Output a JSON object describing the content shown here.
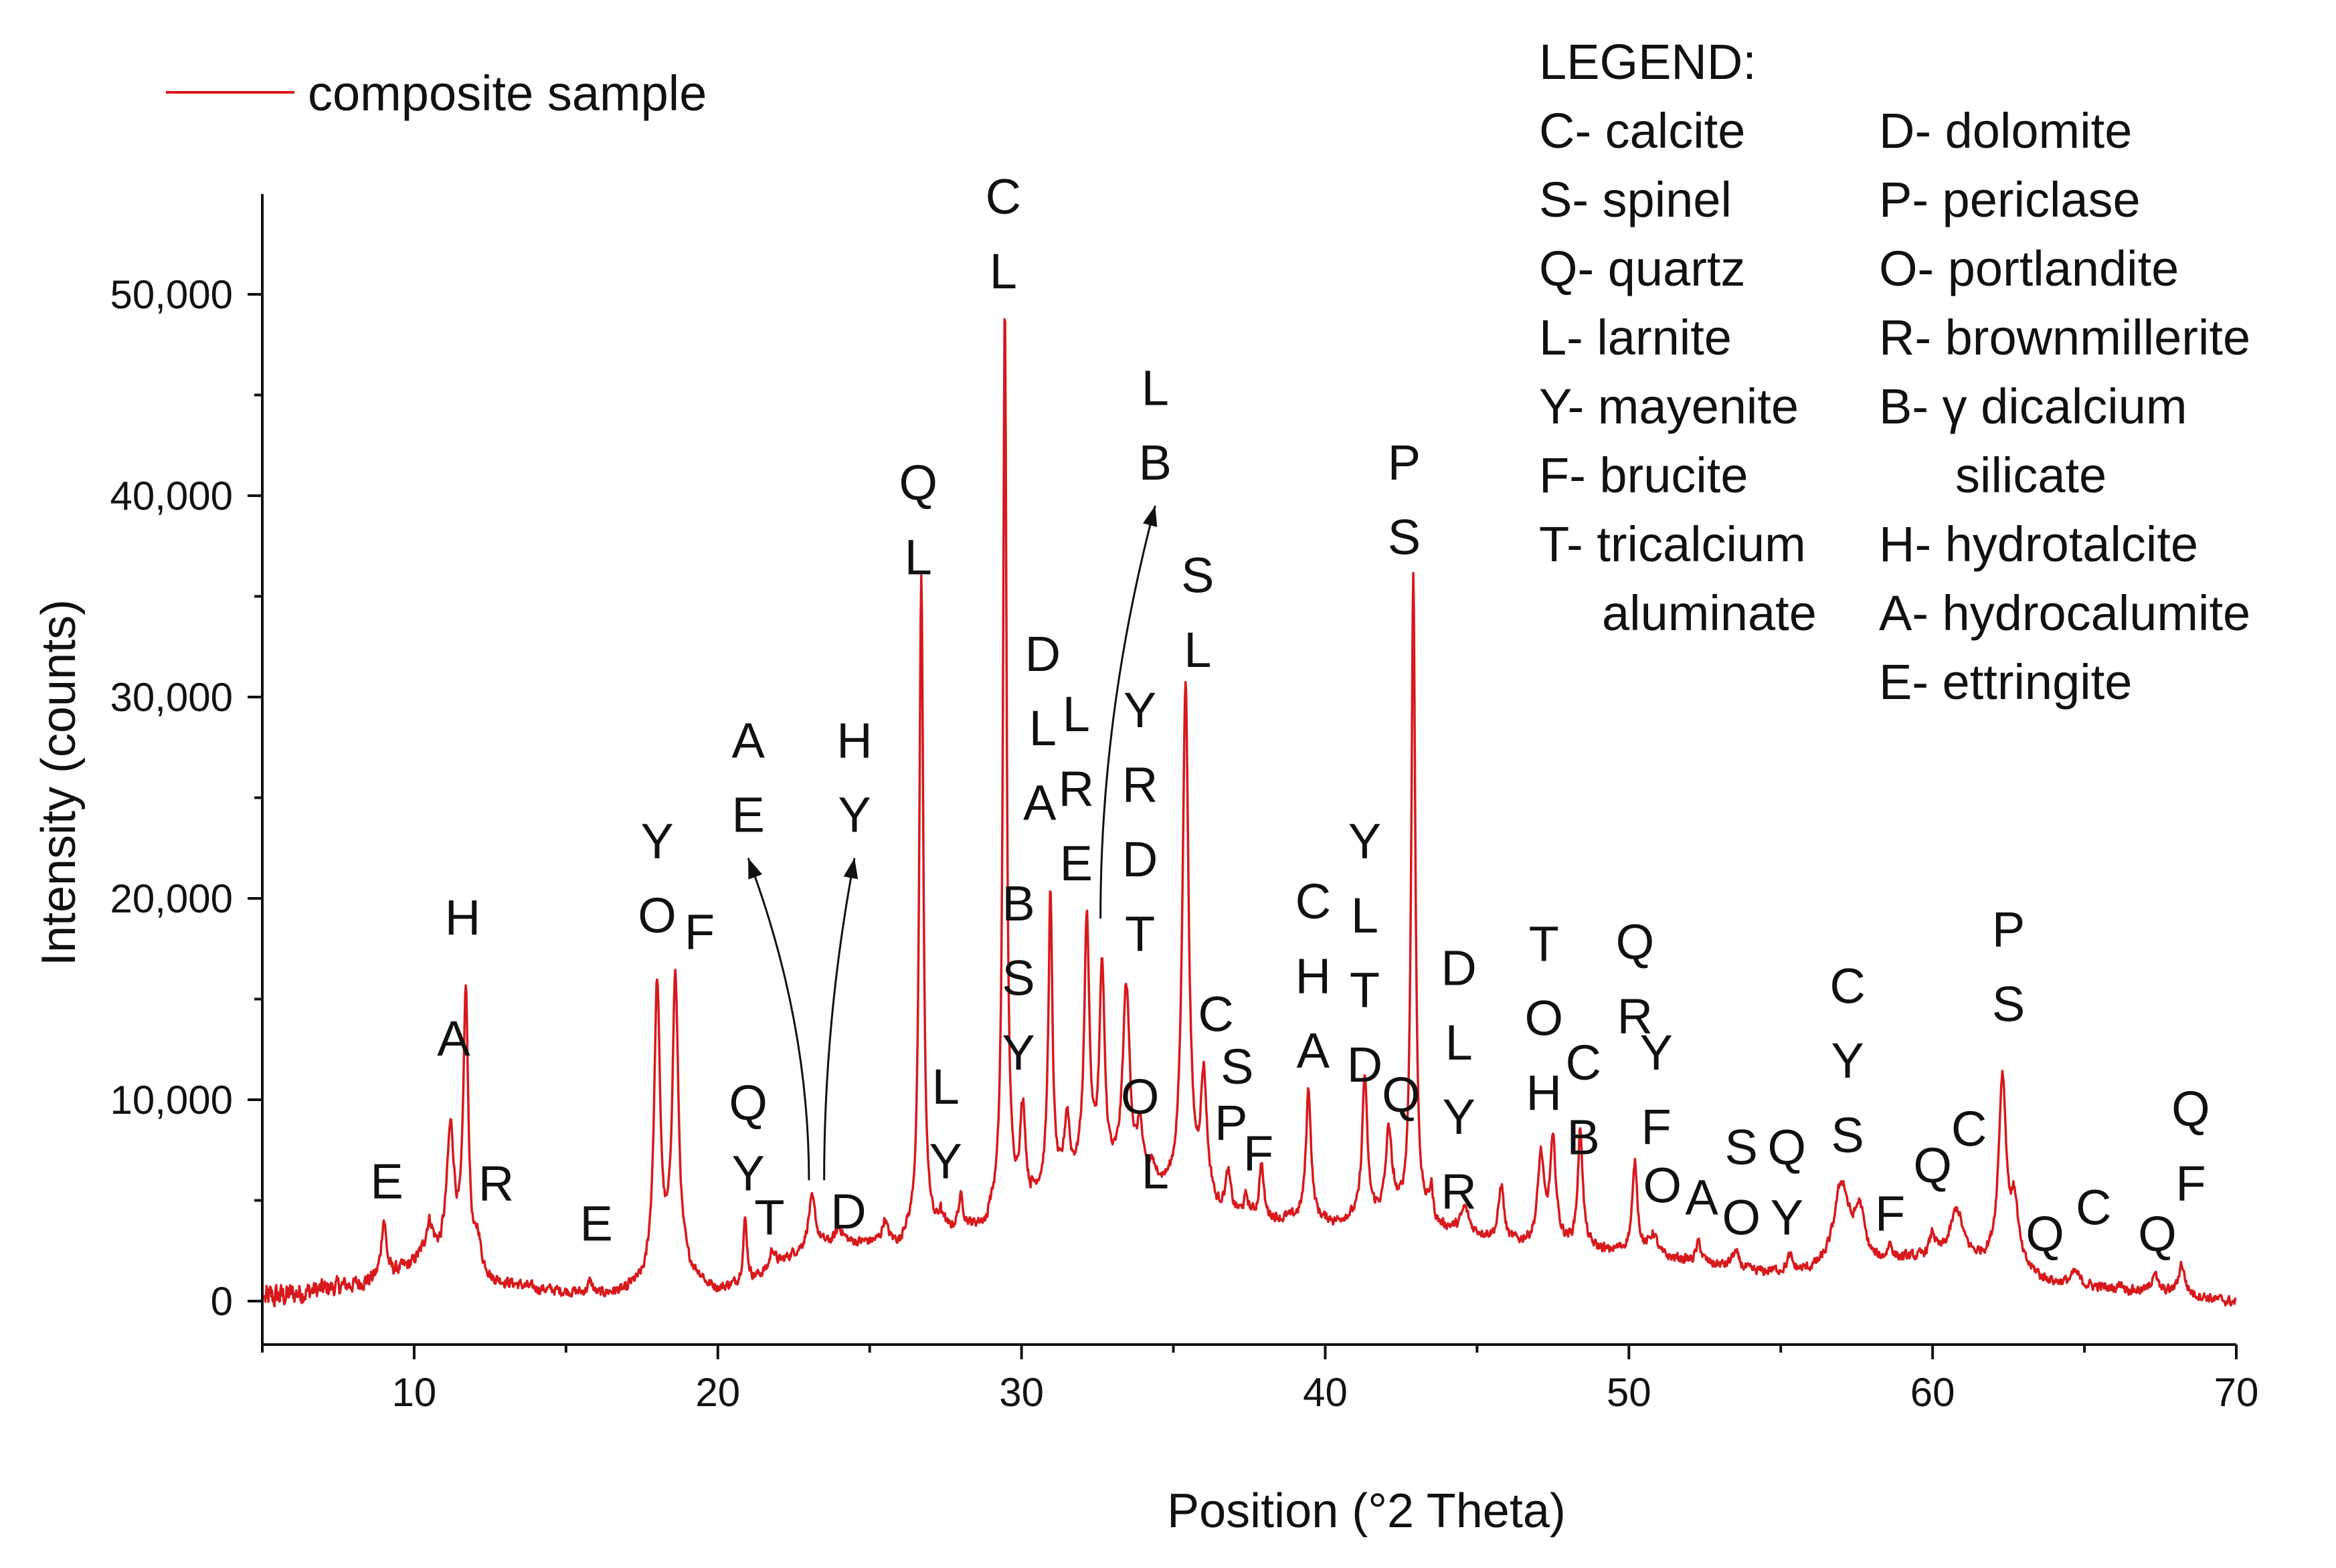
{
  "chart_data": {
    "type": "line",
    "title": "",
    "xlabel": "Position (°2 Theta)",
    "ylabel": "Intensity (counts)",
    "xlim": [
      5,
      70
    ],
    "ylim": [
      -1500,
      55000
    ],
    "x_ticks": [
      10,
      20,
      30,
      40,
      50,
      60,
      70
    ],
    "x_tick_labels": [
      "10",
      "20",
      "30",
      "40",
      "50",
      "60",
      "70"
    ],
    "y_ticks": [
      0,
      10000,
      20000,
      30000,
      40000,
      50000
    ],
    "y_tick_labels": [
      "0",
      "10,000",
      "20,000",
      "30,000",
      "40,000",
      "50,000"
    ],
    "series": [
      {
        "name": "composite sample",
        "color": "#d7191c",
        "baseline": [
          [
            5,
            100
          ],
          [
            7,
            600
          ],
          [
            9,
            1100
          ],
          [
            10.5,
            2300
          ],
          [
            12,
            1300
          ],
          [
            14,
            650
          ],
          [
            16,
            350
          ],
          [
            17.5,
            800
          ],
          [
            19,
            1400
          ],
          [
            20,
            700
          ],
          [
            21,
            900
          ],
          [
            22.5,
            2300
          ],
          [
            24,
            2900
          ],
          [
            25.5,
            3000
          ],
          [
            27,
            3300
          ],
          [
            28.5,
            3900
          ],
          [
            30,
            5000
          ],
          [
            32,
            6500
          ],
          [
            34,
            6000
          ],
          [
            36,
            4800
          ],
          [
            38,
            4200
          ],
          [
            40,
            4000
          ],
          [
            42,
            4300
          ],
          [
            44,
            3700
          ],
          [
            46,
            3000
          ],
          [
            48,
            2700
          ],
          [
            50,
            2500
          ],
          [
            52,
            2000
          ],
          [
            54,
            1500
          ],
          [
            56,
            1400
          ],
          [
            58,
            1700
          ],
          [
            60,
            2300
          ],
          [
            62,
            1800
          ],
          [
            64,
            1000
          ],
          [
            66,
            600
          ],
          [
            68,
            400
          ],
          [
            70,
            -50
          ]
        ],
        "peaks": [
          [
            9.0,
            3000,
            0.1
          ],
          [
            10.5,
            1500,
            0.15
          ],
          [
            11.2,
            6500,
            0.15
          ],
          [
            11.7,
            13500,
            0.1
          ],
          [
            12.1,
            1500,
            0.1
          ],
          [
            15.8,
            600,
            0.1
          ],
          [
            18.0,
            14500,
            0.12
          ],
          [
            18.6,
            14600,
            0.12
          ],
          [
            20.9,
            3200,
            0.08
          ],
          [
            21.8,
            1000,
            0.1
          ],
          [
            23.1,
            2500,
            0.15
          ],
          [
            24.0,
            700,
            0.15
          ],
          [
            25.5,
            1100,
            0.1
          ],
          [
            26.7,
            32700,
            0.08
          ],
          [
            27.4,
            1000,
            0.1
          ],
          [
            28.0,
            1500,
            0.1
          ],
          [
            29.45,
            45000,
            0.07
          ],
          [
            30.05,
            5000,
            0.1
          ],
          [
            30.95,
            14600,
            0.08
          ],
          [
            31.5,
            3000,
            0.1
          ],
          [
            32.15,
            12500,
            0.1
          ],
          [
            32.65,
            10000,
            0.1
          ],
          [
            33.45,
            9500,
            0.14
          ],
          [
            33.9,
            2500,
            0.1
          ],
          [
            34.3,
            1000,
            0.1
          ],
          [
            35.4,
            25500,
            0.12
          ],
          [
            36.0,
            6000,
            0.12
          ],
          [
            36.8,
            1800,
            0.1
          ],
          [
            37.4,
            800,
            0.08
          ],
          [
            37.9,
            2700,
            0.08
          ],
          [
            39.45,
            6500,
            0.1
          ],
          [
            41.3,
            7000,
            0.1
          ],
          [
            42.1,
            4500,
            0.12
          ],
          [
            42.9,
            32000,
            0.08
          ],
          [
            43.5,
            1500,
            0.1
          ],
          [
            44.6,
            1200,
            0.15
          ],
          [
            45.8,
            2800,
            0.1
          ],
          [
            47.1,
            4300,
            0.12
          ],
          [
            47.5,
            5000,
            0.12
          ],
          [
            48.4,
            5800,
            0.1
          ],
          [
            50.2,
            4400,
            0.1
          ],
          [
            50.8,
            1000,
            0.15
          ],
          [
            52.3,
            1000,
            0.1
          ],
          [
            53.5,
            800,
            0.15
          ],
          [
            55.3,
            700,
            0.1
          ],
          [
            57.0,
            4200,
            0.3
          ],
          [
            57.6,
            2500,
            0.2
          ],
          [
            58.6,
            800,
            0.1
          ],
          [
            60.0,
            1000,
            0.1
          ],
          [
            60.8,
            2500,
            0.25
          ],
          [
            62.3,
            9300,
            0.15
          ],
          [
            62.7,
            3000,
            0.15
          ],
          [
            64.7,
            600,
            0.15
          ],
          [
            66.2,
            300,
            0.1
          ],
          [
            67.3,
            1000,
            0.1
          ],
          [
            68.2,
            1500,
            0.12
          ]
        ]
      }
    ],
    "peak_labels": [
      {
        "x": 9.1,
        "y": 5100,
        "text": "E"
      },
      {
        "x": 11.3,
        "y": 12200,
        "text": "A"
      },
      {
        "x": 11.6,
        "y": 18200,
        "text": "H"
      },
      {
        "x": 12.7,
        "y": 5000,
        "text": "R"
      },
      {
        "x": 16.0,
        "y": 3000,
        "text": "E"
      },
      {
        "x": 18.0,
        "y": 22000,
        "text": "Y"
      },
      {
        "x": 18.0,
        "y": 18300,
        "text": "O"
      },
      {
        "x": 19.4,
        "y": 17500,
        "text": "F"
      },
      {
        "x": 21.0,
        "y": 9000,
        "text": "Q"
      },
      {
        "x": 21.0,
        "y": 5500,
        "text": "Y"
      },
      {
        "x": 21.7,
        "y": 3300,
        "text": "T"
      },
      {
        "x": 21.0,
        "y": 27000,
        "text": "A"
      },
      {
        "x": 21.0,
        "y": 23300,
        "text": "E"
      },
      {
        "x": 24.3,
        "y": 3600,
        "text": "D"
      },
      {
        "x": 24.5,
        "y": 27000,
        "text": "H"
      },
      {
        "x": 24.5,
        "y": 23300,
        "text": "Y"
      },
      {
        "x": 26.6,
        "y": 39800,
        "text": "Q"
      },
      {
        "x": 26.6,
        "y": 36100,
        "text": "L"
      },
      {
        "x": 27.5,
        "y": 9800,
        "text": "L"
      },
      {
        "x": 27.5,
        "y": 6100,
        "text": "Y"
      },
      {
        "x": 29.4,
        "y": 54000,
        "text": "C"
      },
      {
        "x": 29.4,
        "y": 50300,
        "text": "L"
      },
      {
        "x": 30.7,
        "y": 31300,
        "text": "D"
      },
      {
        "x": 30.7,
        "y": 27600,
        "text": "L"
      },
      {
        "x": 30.6,
        "y": 23900,
        "text": "A"
      },
      {
        "x": 31.8,
        "y": 28300,
        "text": "L"
      },
      {
        "x": 31.8,
        "y": 24600,
        "text": "R"
      },
      {
        "x": 31.8,
        "y": 20900,
        "text": "E"
      },
      {
        "x": 29.9,
        "y": 18900,
        "text": "B"
      },
      {
        "x": 29.9,
        "y": 15200,
        "text": "S"
      },
      {
        "x": 29.9,
        "y": 11500,
        "text": "Y"
      },
      {
        "x": 34.4,
        "y": 44500,
        "text": "L"
      },
      {
        "x": 34.4,
        "y": 40800,
        "text": "B"
      },
      {
        "x": 33.9,
        "y": 28500,
        "text": "Y"
      },
      {
        "x": 33.9,
        "y": 24800,
        "text": "R"
      },
      {
        "x": 33.9,
        "y": 21100,
        "text": "D"
      },
      {
        "x": 33.9,
        "y": 17400,
        "text": "T"
      },
      {
        "x": 33.9,
        "y": 9300,
        "text": "O"
      },
      {
        "x": 34.4,
        "y": 5600,
        "text": "L"
      },
      {
        "x": 35.8,
        "y": 35200,
        "text": "S"
      },
      {
        "x": 35.8,
        "y": 31500,
        "text": "L"
      },
      {
        "x": 36.4,
        "y": 13400,
        "text": "C"
      },
      {
        "x": 37.1,
        "y": 10800,
        "text": "S"
      },
      {
        "x": 36.9,
        "y": 8000,
        "text": "P"
      },
      {
        "x": 37.8,
        "y": 6500,
        "text": "F"
      },
      {
        "x": 39.6,
        "y": 19000,
        "text": "C"
      },
      {
        "x": 39.6,
        "y": 15300,
        "text": "H"
      },
      {
        "x": 39.6,
        "y": 11600,
        "text": "A"
      },
      {
        "x": 41.3,
        "y": 22000,
        "text": "Y"
      },
      {
        "x": 41.3,
        "y": 18300,
        "text": "L"
      },
      {
        "x": 41.3,
        "y": 14600,
        "text": "T"
      },
      {
        "x": 41.3,
        "y": 10900,
        "text": "D"
      },
      {
        "x": 42.5,
        "y": 9400,
        "text": "Q"
      },
      {
        "x": 42.6,
        "y": 40800,
        "text": "P"
      },
      {
        "x": 42.6,
        "y": 37100,
        "text": "S"
      },
      {
        "x": 44.4,
        "y": 15700,
        "text": "D"
      },
      {
        "x": 44.4,
        "y": 12000,
        "text": "L"
      },
      {
        "x": 44.4,
        "y": 8300,
        "text": "Y"
      },
      {
        "x": 44.4,
        "y": 4600,
        "text": "R"
      },
      {
        "x": 47.2,
        "y": 16900,
        "text": "T"
      },
      {
        "x": 47.2,
        "y": 13200,
        "text": "O"
      },
      {
        "x": 47.2,
        "y": 9500,
        "text": "H"
      },
      {
        "x": 48.5,
        "y": 11000,
        "text": "C"
      },
      {
        "x": 48.5,
        "y": 7300,
        "text": "B"
      },
      {
        "x": 50.2,
        "y": 17000,
        "text": "Q"
      },
      {
        "x": 50.2,
        "y": 13300,
        "text": "R"
      },
      {
        "x": 50.9,
        "y": 11500,
        "text": "Y"
      },
      {
        "x": 50.9,
        "y": 7800,
        "text": "F"
      },
      {
        "x": 51.1,
        "y": 4900,
        "text": "O"
      },
      {
        "x": 52.4,
        "y": 4300,
        "text": "A"
      },
      {
        "x": 53.7,
        "y": 6800,
        "text": "S"
      },
      {
        "x": 53.7,
        "y": 3300,
        "text": "O"
      },
      {
        "x": 55.2,
        "y": 6800,
        "text": "Q"
      },
      {
        "x": 55.2,
        "y": 3300,
        "text": "Y"
      },
      {
        "x": 57.2,
        "y": 14800,
        "text": "C"
      },
      {
        "x": 57.2,
        "y": 11100,
        "text": "Y"
      },
      {
        "x": 57.2,
        "y": 7400,
        "text": "S"
      },
      {
        "x": 58.6,
        "y": 3500,
        "text": "F"
      },
      {
        "x": 60.0,
        "y": 5900,
        "text": "Q"
      },
      {
        "x": 61.2,
        "y": 7700,
        "text": "C"
      },
      {
        "x": 62.5,
        "y": 17600,
        "text": "P"
      },
      {
        "x": 62.5,
        "y": 13900,
        "text": "S"
      },
      {
        "x": 63.7,
        "y": 2500,
        "text": "Q"
      },
      {
        "x": 65.3,
        "y": 3800,
        "text": "C"
      },
      {
        "x": 67.4,
        "y": 2500,
        "text": "Q"
      },
      {
        "x": 68.5,
        "y": 8700,
        "text": "Q"
      },
      {
        "x": 68.5,
        "y": 5000,
        "text": "F"
      }
    ],
    "arrows": [
      {
        "from": [
          23.0,
          6000
        ],
        "to": [
          21.0,
          22000
        ]
      },
      {
        "from": [
          23.5,
          6000
        ],
        "to": [
          24.5,
          22000
        ]
      },
      {
        "from": [
          32.6,
          19000
        ],
        "to": [
          34.4,
          39500
        ]
      }
    ]
  },
  "legend": {
    "series_label": "composite sample",
    "heading": "LEGEND:",
    "col1": [
      "C- calcite",
      "S- spinel",
      "Q- quartz",
      "L- larnite",
      "Y- mayenite",
      "F- brucite",
      "T- tricalcium",
      "aluminate"
    ],
    "col2": [
      "D- dolomite",
      "P- periclase",
      "O- portlandite",
      "R- brownmillerite",
      "B- γ dicalcium",
      "silicate",
      "H- hydrotalcite",
      "A- hydrocalumite",
      "E- ettringite"
    ]
  }
}
